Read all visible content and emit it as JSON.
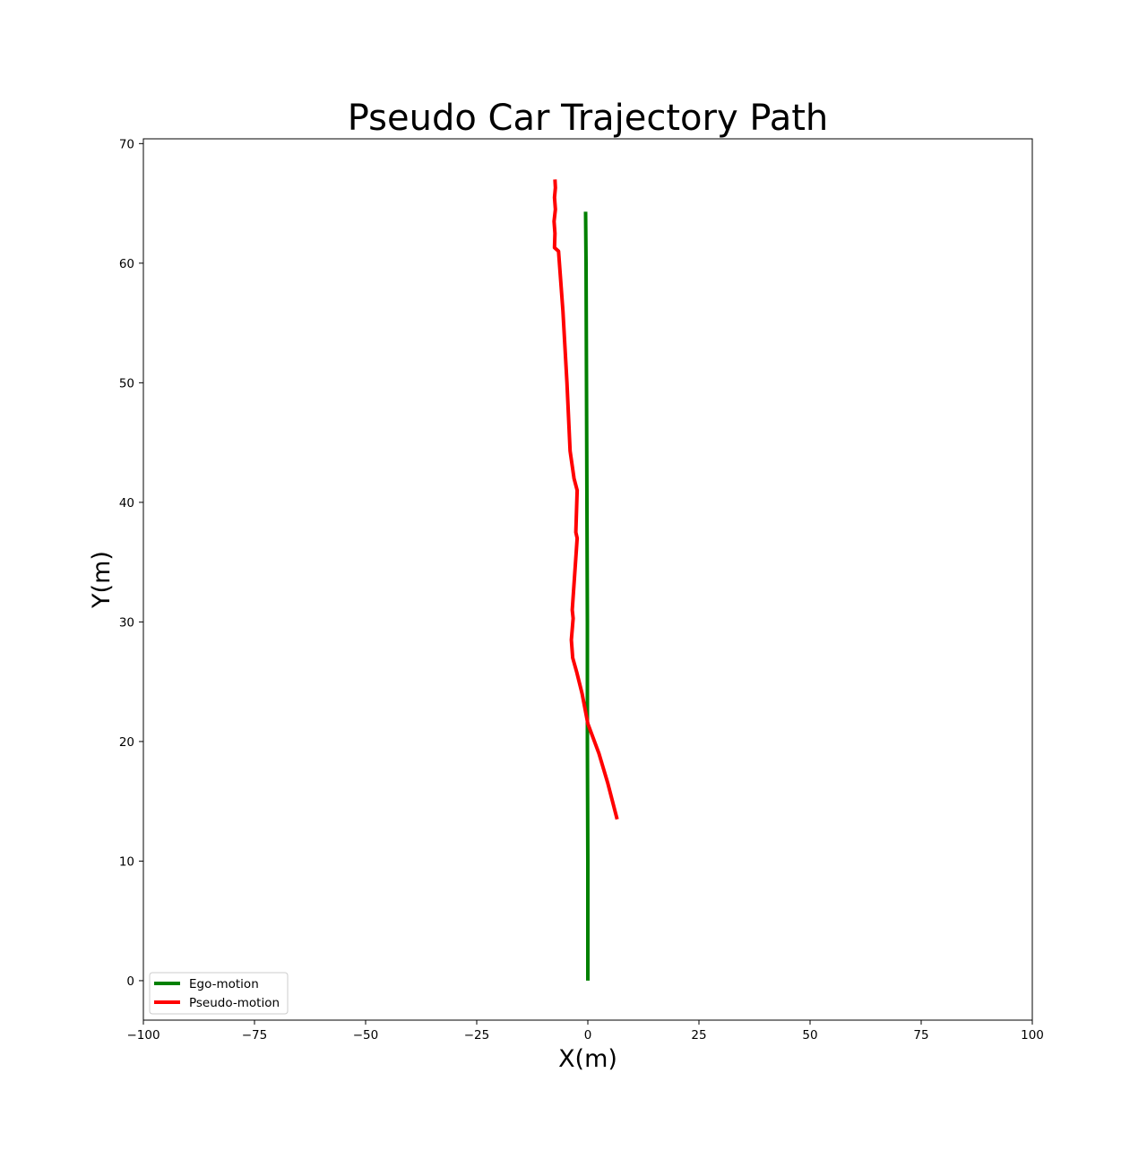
{
  "chart_data": {
    "type": "line",
    "title": "Pseudo Car Trajectory Path",
    "xlabel": "X(m)",
    "ylabel": "Y(m)",
    "xlim": [
      -100,
      100
    ],
    "ylim": [
      -3.3,
      70.4
    ],
    "grid": false,
    "legend_position": "lower-left",
    "x_ticks": [
      -100,
      -75,
      -50,
      -25,
      0,
      25,
      50,
      75,
      100
    ],
    "x_tick_labels": [
      "−100",
      "−75",
      "−50",
      "−25",
      "0",
      "25",
      "50",
      "75",
      "100"
    ],
    "y_ticks": [
      0,
      10,
      20,
      30,
      40,
      50,
      60,
      70
    ],
    "y_tick_labels": [
      "0",
      "10",
      "20",
      "30",
      "40",
      "50",
      "60",
      "70"
    ],
    "series": [
      {
        "name": "Ego-motion",
        "color": "#008000",
        "x": [
          0.0,
          0.0,
          -0.1,
          -0.1,
          -0.2,
          -0.3,
          -0.4,
          -0.5
        ],
        "y": [
          0.0,
          10.0,
          20.0,
          30.0,
          40.0,
          50.0,
          60.0,
          64.3
        ]
      },
      {
        "name": "Pseudo-motion",
        "color": "#ff0000",
        "x": [
          6.6,
          4.5,
          2.5,
          0.0,
          -1.3,
          -2.5,
          -3.4,
          -3.7,
          -3.3,
          -3.5,
          -2.4,
          -2.7,
          -2.4,
          -3.1,
          -4.0,
          -4.7,
          -5.6,
          -6.6,
          -7.5,
          -7.4,
          -7.6,
          -7.3,
          -7.5,
          -7.3,
          -7.4
        ],
        "y": [
          13.5,
          16.5,
          19.0,
          21.5,
          24.0,
          25.8,
          27.0,
          28.5,
          30.3,
          31.0,
          37.0,
          37.5,
          41.0,
          42.0,
          44.3,
          50.0,
          56.0,
          61.0,
          61.3,
          62.5,
          63.5,
          64.5,
          65.5,
          66.3,
          67.0
        ]
      }
    ]
  }
}
